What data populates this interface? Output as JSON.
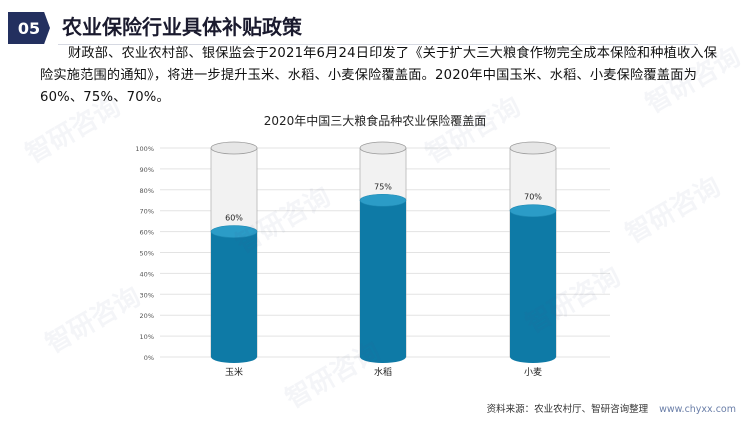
{
  "header": {
    "section_number": "05",
    "title": "农业保险行业具体补贴政策"
  },
  "intro_text": "财政部、农业农村部、银保监会于2021年6月24日印发了《关于扩大三大粮食作物完全成本保险和种植收入保险实施范围的通知》，将进一步提升玉米、水稻、小麦保险覆盖面。2020年中国玉米、水稻、小麦保险覆盖面为60%、75%、70%。",
  "watermark": "智研咨询",
  "footer": {
    "source": "资料来源：农业农村厅、智研咨询整理",
    "url": "www.chyxx.com"
  },
  "colors": {
    "badge": "#23305f",
    "fill": "#0e7aa6",
    "fill_top": "#2b9cc7",
    "tube_top": "#e6e6e6"
  },
  "chart_data": {
    "type": "bar",
    "title": "2020年中国三大粮食品种农业保险覆盖面",
    "categories": [
      "玉米",
      "水稻",
      "小麦"
    ],
    "values": [
      60,
      75,
      70
    ],
    "value_labels": [
      "60%",
      "75%",
      "70%"
    ],
    "ylim": [
      0,
      100
    ],
    "yticks": [
      "0%",
      "10%",
      "20%",
      "30%",
      "40%",
      "50%",
      "60%",
      "70%",
      "80%",
      "90%",
      "100%"
    ],
    "grid": true,
    "xlabel": "",
    "ylabel": ""
  }
}
